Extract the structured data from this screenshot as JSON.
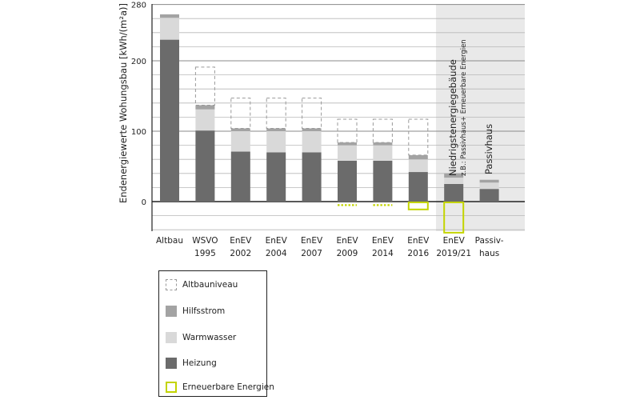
{
  "chart_data": {
    "type": "bar",
    "stacked": true,
    "ylabel": "Endenergiewerte Wohungsbau [kWh/(m²a)]",
    "y_ticks": [
      0,
      100,
      200,
      280
    ],
    "ylim": [
      -40,
      280
    ],
    "grid": "horizontal",
    "categories": [
      {
        "line1": "Altbau",
        "line2": ""
      },
      {
        "line1": "WSVO",
        "line2": "1995"
      },
      {
        "line1": "EnEV",
        "line2": "2002"
      },
      {
        "line1": "EnEV",
        "line2": "2004"
      },
      {
        "line1": "EnEV",
        "line2": "2007"
      },
      {
        "line1": "EnEV",
        "line2": "2009"
      },
      {
        "line1": "EnEV",
        "line2": "2014"
      },
      {
        "line1": "EnEV",
        "line2": "2016"
      },
      {
        "line1": "EnEV",
        "line2": "2019/21"
      },
      {
        "line1": "Passiv-",
        "line2": "haus"
      }
    ],
    "series": [
      {
        "name": "Heizung",
        "color": "#6b6b6b",
        "values": [
          230,
          101,
          71,
          70,
          70,
          58,
          58,
          42,
          25,
          18
        ]
      },
      {
        "name": "Warmwasser",
        "color": "#d9d9d9",
        "values": [
          31,
          30,
          29,
          30,
          30,
          22,
          22,
          18,
          9,
          9
        ]
      },
      {
        "name": "Hilfsstrom",
        "color": "#a3a3a3",
        "values": [
          5,
          6,
          4,
          4,
          4,
          4,
          4,
          6,
          6,
          4
        ]
      }
    ],
    "altbauniveau": {
      "name": "Altbauniveau",
      "style": "dashed-outline",
      "color": "#9a9a9a",
      "values": [
        null,
        191,
        147,
        147,
        147,
        117,
        117,
        117,
        null,
        null
      ]
    },
    "erneuerbare": {
      "name": "Erneuerbare Energien",
      "color": "#c3d400",
      "values": [
        0,
        0,
        0,
        0,
        0,
        -5,
        -5,
        -10,
        -43,
        0
      ]
    },
    "shaded_region": {
      "color": "#e9e9e9",
      "from_category": 8,
      "to_category": 9
    },
    "annotations": {
      "niedrig_title": "Niedrigstenergiegebäude",
      "niedrig_sub": "z.B.: Passivhaus+ Erneuerbare Energien",
      "passivhaus": "Passivhaus"
    }
  },
  "legend": [
    {
      "label": "Altbauniveau",
      "style": "dashed",
      "color": "#9a9a9a"
    },
    {
      "label": "Hilfsstrom",
      "style": "fill",
      "color": "#a3a3a3"
    },
    {
      "label": "Warmwasser",
      "style": "fill",
      "color": "#d9d9d9"
    },
    {
      "label": "Heizung",
      "style": "fill",
      "color": "#6b6b6b"
    },
    {
      "label": "Erneuerbare Energien",
      "style": "outline",
      "color": "#c3d400"
    }
  ]
}
